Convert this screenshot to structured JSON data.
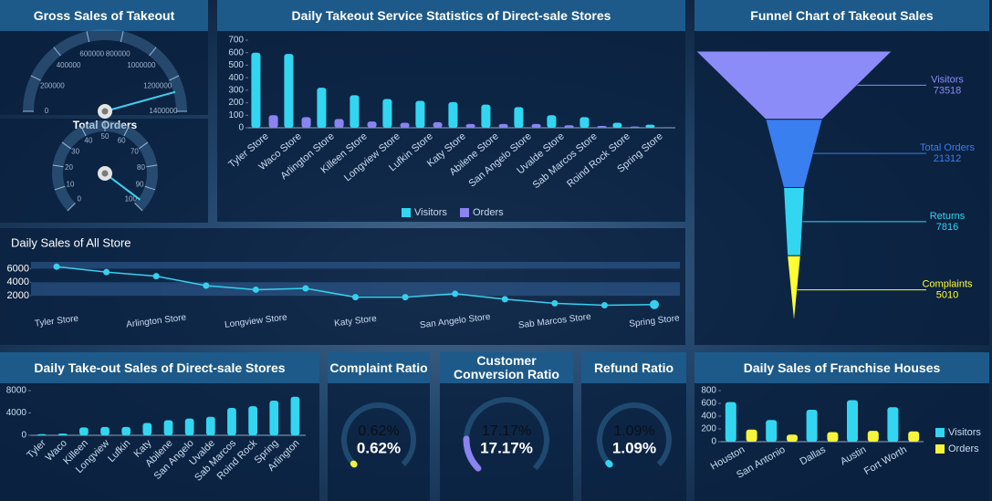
{
  "chart_data": [
    {
      "type": "gauge",
      "title": "Gross Sales of Takeout",
      "value": 1280000,
      "ylim": [
        0,
        1400000
      ],
      "yticks": [
        0,
        200000,
        400000,
        600000,
        800000,
        1000000,
        1200000,
        1400000
      ],
      "color": "#3fd0f0"
    },
    {
      "type": "gauge",
      "title": "Total Orders",
      "value": 97,
      "ylim": [
        0,
        100
      ],
      "yticks": [
        0,
        10,
        20,
        30,
        40,
        50,
        60,
        70,
        80,
        90,
        100
      ],
      "color": "#3fd0f0"
    },
    {
      "type": "bar",
      "title": "Daily Takeout Service Statistics of Direct-sale Stores",
      "categories": [
        "Tyler Store",
        "Waco Store",
        "Arlington Store",
        "Killeen Store",
        "Longview Store",
        "Lufkin Store",
        "Katy Store",
        "Abilene Store",
        "San Angelo Store",
        "Uvalde Store",
        "Sab Marcos Store",
        "Roind Rock Store",
        "Spring Store"
      ],
      "series": [
        {
          "name": "Visitors",
          "color": "#33d6f0",
          "values": [
            600,
            590,
            320,
            260,
            230,
            215,
            205,
            185,
            165,
            100,
            85,
            40,
            25
          ]
        },
        {
          "name": "Orders",
          "color": "#8a83f0",
          "values": [
            100,
            85,
            70,
            50,
            40,
            45,
            30,
            30,
            30,
            20,
            15,
            10,
            5
          ]
        }
      ],
      "ylim": [
        0,
        700
      ],
      "yticks": [
        0,
        100,
        200,
        300,
        400,
        500,
        600,
        700
      ]
    },
    {
      "type": "funnel",
      "title": "Funnel Chart of Takeout Sales",
      "categories": [
        "Visitors",
        "Total Orders",
        "Returns",
        "Complaints"
      ],
      "values": [
        73518,
        21312,
        7816,
        5010
      ],
      "colors": [
        "#8c8cf8",
        "#3a7ff0",
        "#33d6f0",
        "#ffff33"
      ]
    },
    {
      "type": "line",
      "title": "Daily Sales of All Store",
      "categories": [
        "Tyler Store",
        null,
        "Arlington Store",
        null,
        "Longview Store",
        null,
        "Katy Store",
        null,
        "San Angelo Store",
        null,
        "Sab Marcos Store",
        null,
        "Spring Store"
      ],
      "values": [
        6300,
        5500,
        4900,
        3500,
        2900,
        3100,
        1800,
        1800,
        2300,
        1500,
        900,
        600,
        700
      ],
      "color": "#36d0ee",
      "ylim": [
        0,
        7000
      ],
      "yticks": [
        2000,
        4000,
        6000
      ]
    },
    {
      "type": "bar",
      "title": "Daily Take-out Sales of Direct-sale Stores",
      "categories": [
        "Tyler",
        "Waco",
        "Killeen",
        "Longview",
        "Lufkin",
        "Katy",
        "Abilene",
        "San Angelo",
        "Uvalde",
        "Sab Marcos",
        "Roind Rock",
        "Spring",
        "Arlington"
      ],
      "values": [
        200,
        300,
        1400,
        1500,
        1500,
        2200,
        2700,
        3000,
        3300,
        4900,
        5200,
        6200,
        6900
      ],
      "color": "#33d6f0",
      "ylim": [
        0,
        8000
      ],
      "yticks": [
        0,
        4000,
        8000
      ]
    },
    {
      "type": "ring",
      "title": "Complaint Ratio",
      "value": 0.62,
      "value_label": "0.62%",
      "ylim": [
        0,
        100
      ],
      "color": "#f0f040"
    },
    {
      "type": "ring",
      "title": "Customer Conversion Ratio",
      "value": 17.17,
      "value_label": "17.17%",
      "ylim": [
        0,
        100
      ],
      "color": "#8a83f0"
    },
    {
      "type": "ring",
      "title": "Refund Ratio",
      "value": 1.09,
      "value_label": "1.09%",
      "ylim": [
        0,
        100
      ],
      "color": "#33d6f0"
    },
    {
      "type": "bar",
      "title": "Daily Sales of Franchise Houses",
      "categories": [
        "Houston",
        "San Antonio",
        "Dallas",
        "Austin",
        "Fort Worth"
      ],
      "series": [
        {
          "name": "Visitors",
          "color": "#33d6f0",
          "values": [
            620,
            340,
            500,
            650,
            540
          ]
        },
        {
          "name": "Orders",
          "color": "#f5f53c",
          "values": [
            190,
            110,
            150,
            170,
            160
          ]
        }
      ],
      "ylim": [
        0,
        800
      ],
      "yticks": [
        0,
        200,
        400,
        600,
        800
      ]
    }
  ]
}
